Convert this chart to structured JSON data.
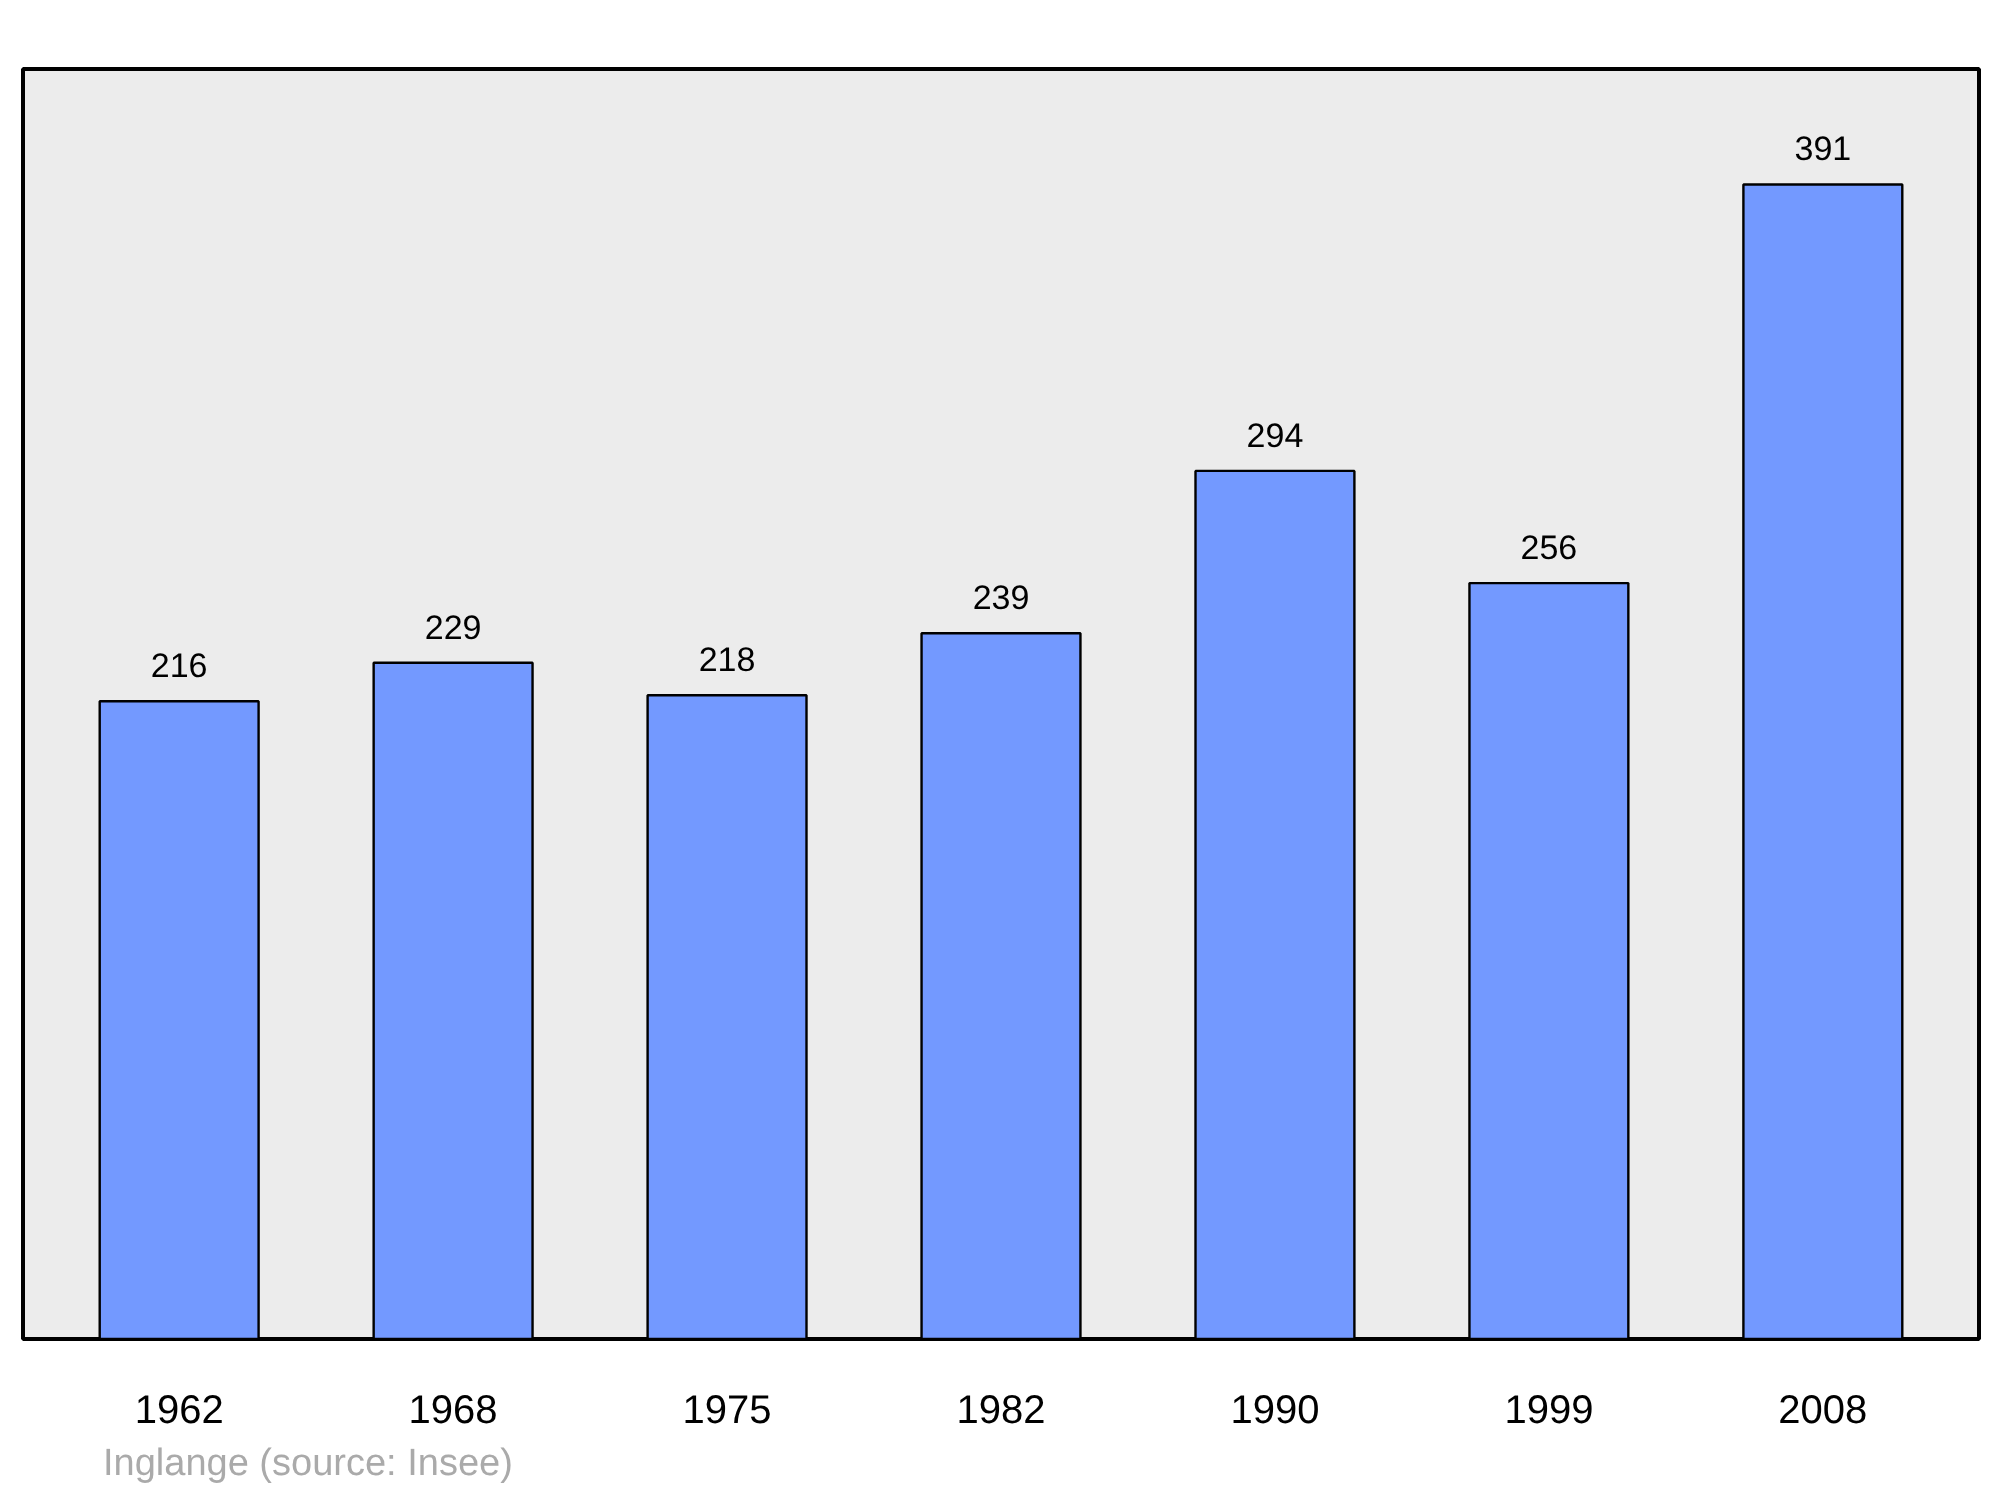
{
  "chart_data": {
    "type": "bar",
    "categories": [
      "1962",
      "1968",
      "1975",
      "1982",
      "1990",
      "1999",
      "2008"
    ],
    "values": [
      216,
      229,
      218,
      239,
      294,
      256,
      391
    ],
    "color": "#7399ff",
    "data_labels": true,
    "grid": false,
    "tick_labels": "x",
    "annotations": [
      "Inglange    (source: Insee)"
    ]
  }
}
